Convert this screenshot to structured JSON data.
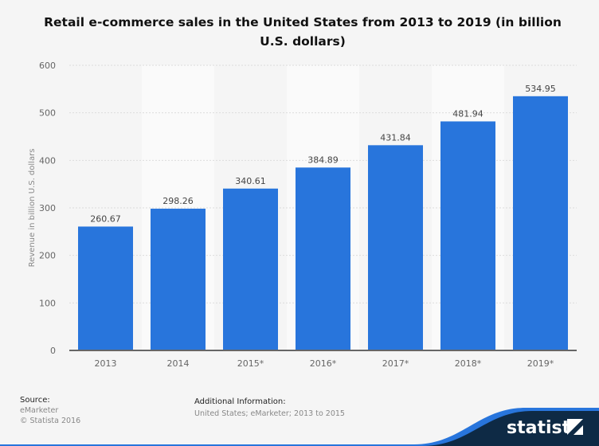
{
  "chart_data": {
    "type": "bar",
    "title": "Retail e-commerce sales in the United States from 2013 to 2019 (in billion U.S. dollars)",
    "xlabel": "",
    "ylabel": "Revenue in billion U.S. dollars",
    "categories": [
      "2013",
      "2014",
      "2015*",
      "2016*",
      "2017*",
      "2018*",
      "2019*"
    ],
    "values": [
      260.67,
      298.26,
      340.61,
      384.89,
      431.84,
      481.94,
      534.95
    ],
    "data_labels": [
      "260.67",
      "298.26",
      "340.61",
      "384.89",
      "431.84",
      "481.94",
      "534.95"
    ],
    "ylim": [
      0,
      600
    ],
    "yticks": [
      0,
      100,
      200,
      300,
      400,
      500,
      600
    ],
    "grid": true,
    "legend": "none",
    "bar_color": "#2875dc"
  },
  "footer": {
    "source_label": "Source:",
    "source_lines": [
      "eMarketer",
      "© Statista 2016"
    ],
    "info_label": "Additional Information:",
    "info_text": "United States; eMarketer; 2013 to 2015",
    "brand": "statista"
  }
}
